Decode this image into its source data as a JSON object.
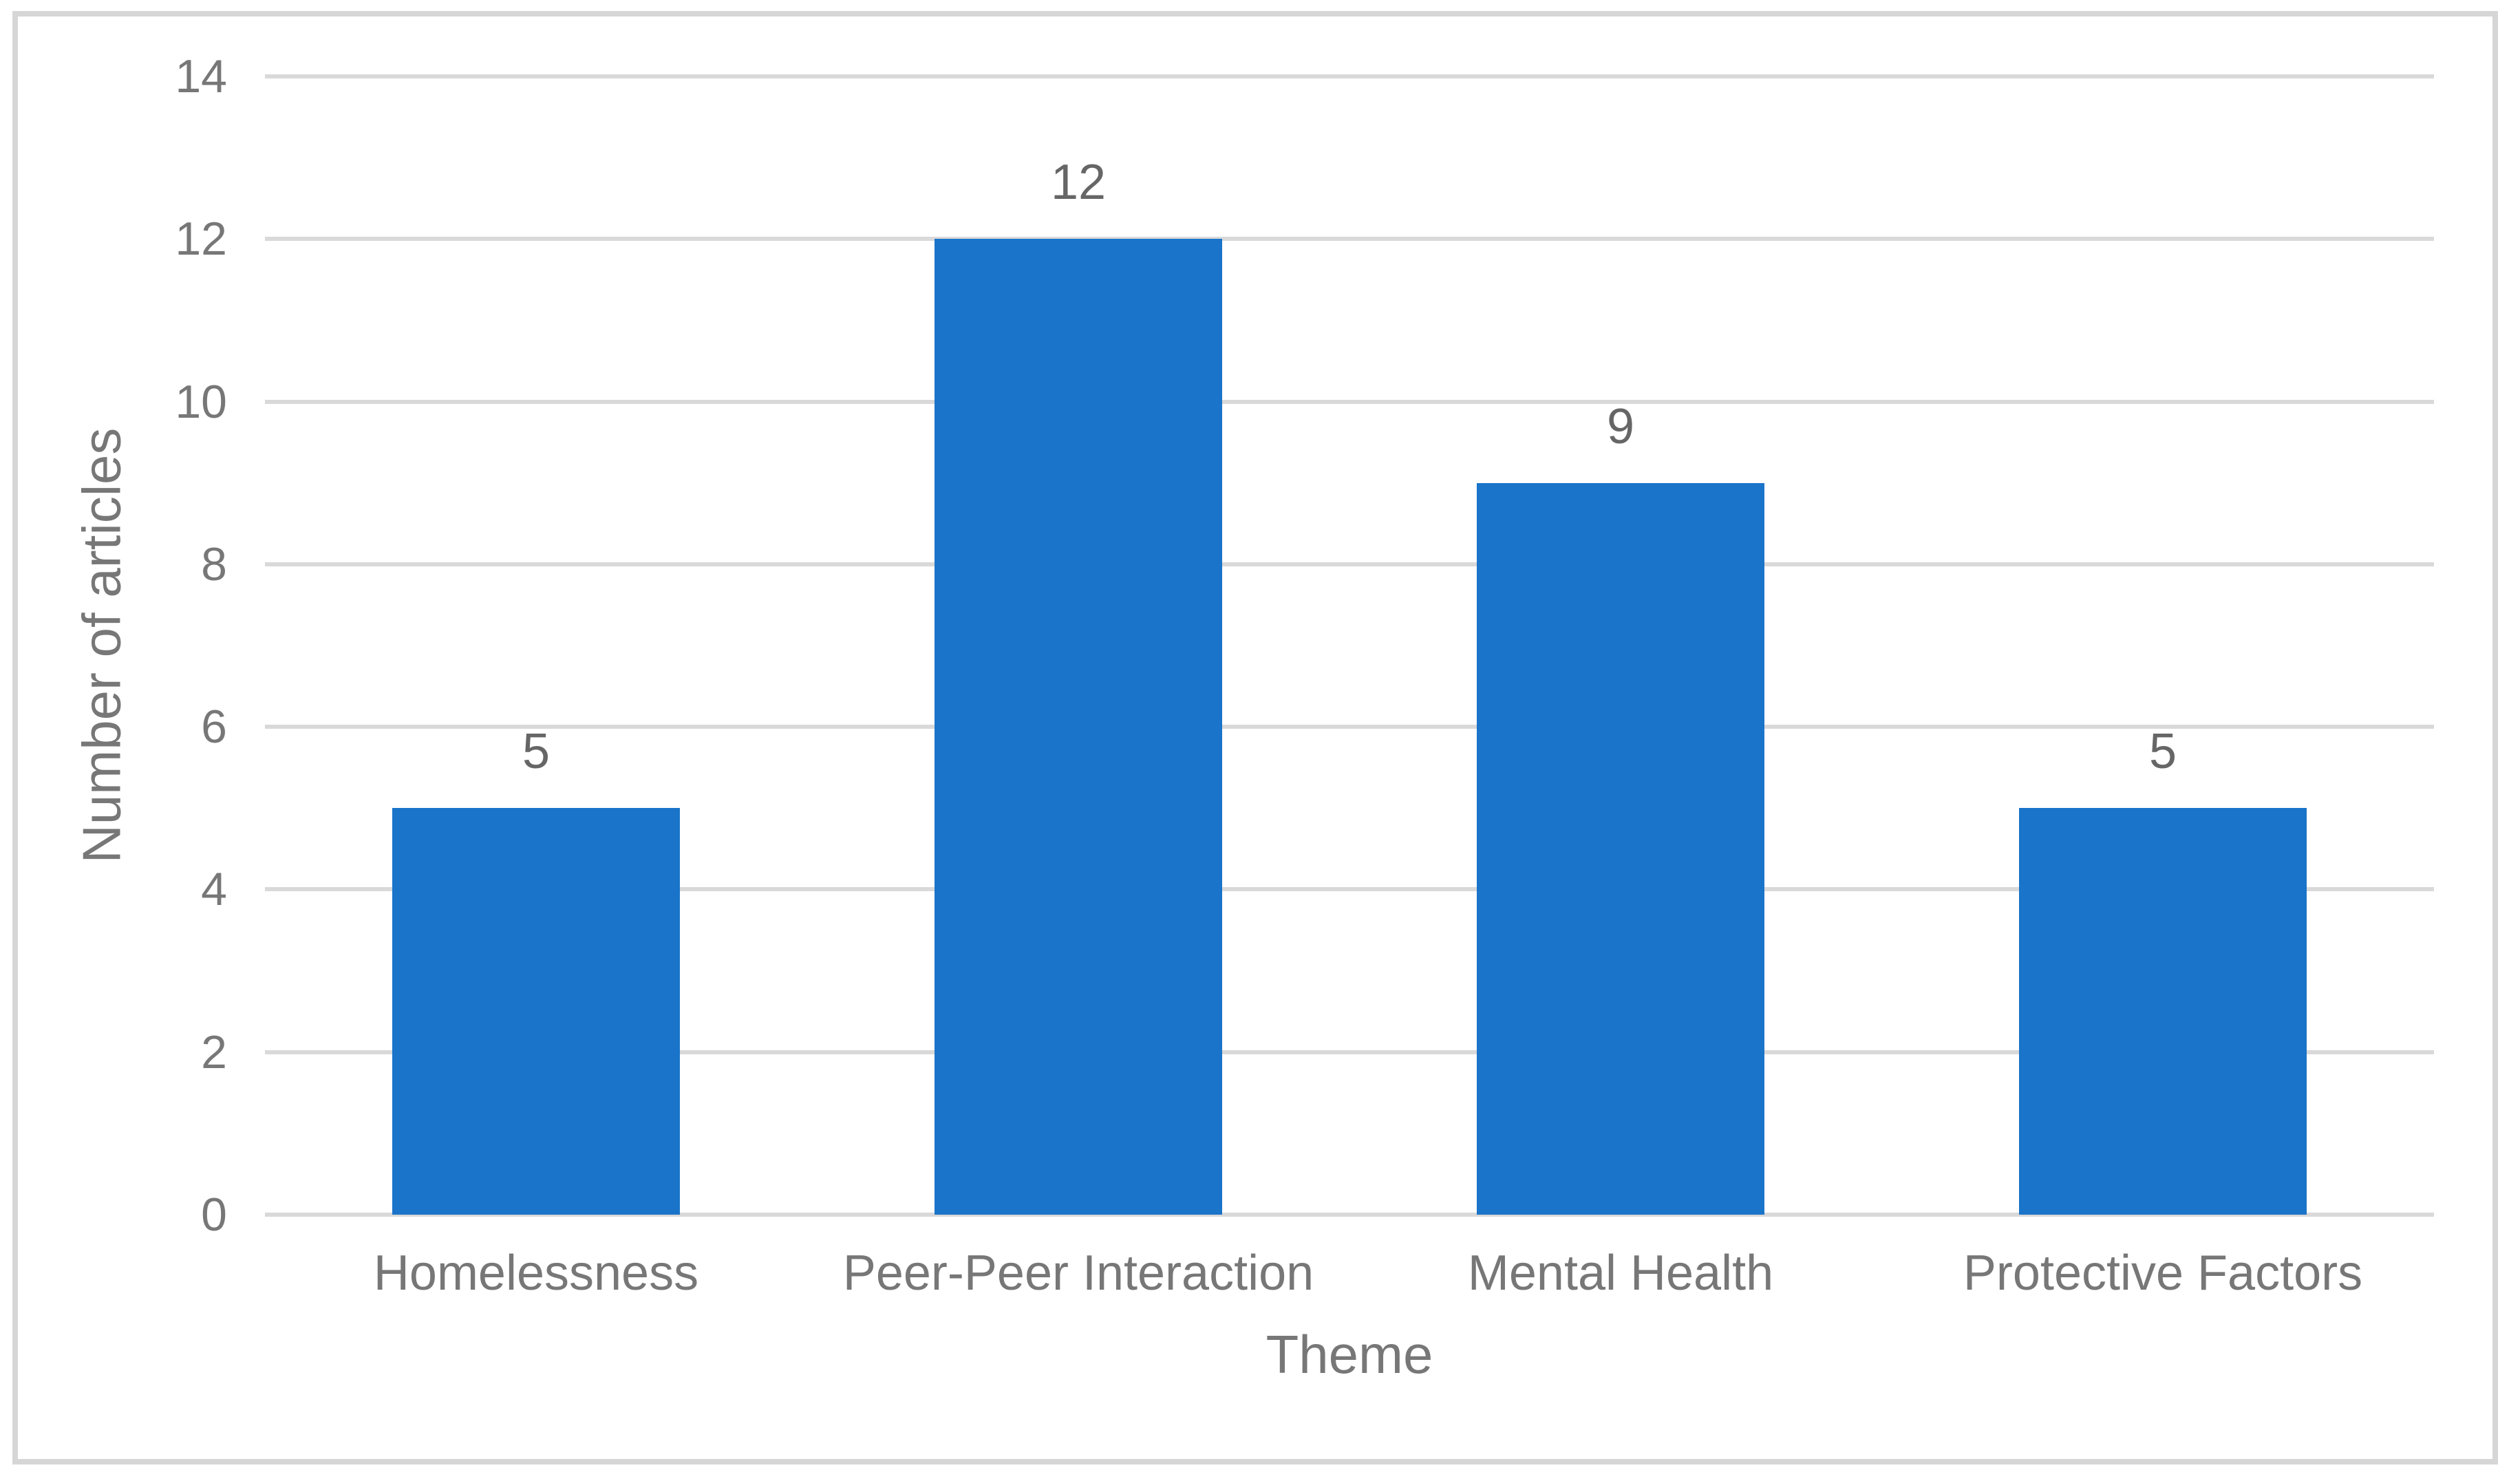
{
  "chart_data": {
    "type": "bar",
    "title": "",
    "categories": [
      "Homelessness",
      "Peer-Peer Interaction",
      "Mental Health",
      "Protective Factors"
    ],
    "values": [
      5,
      12,
      9,
      5
    ],
    "data_labels": [
      "5",
      "12",
      "9",
      "5"
    ],
    "xlabel": "Theme",
    "ylabel": "Number of articles",
    "ylim": [
      0,
      14
    ],
    "yticks": [
      0,
      2,
      4,
      6,
      8,
      10,
      12,
      14
    ],
    "grid": true,
    "legend": false,
    "gap_to_bar_ratio": "bars occupy about 53% of each category slot",
    "colors": {
      "bar_fill": "#1A74C9",
      "grid_line": "#D9D9D9",
      "axis_text": "#777777",
      "data_label_text": "#666666",
      "axis_title_text": "#777777",
      "figure_border": "#D6D6D6",
      "background": "#FFFFFF"
    }
  }
}
